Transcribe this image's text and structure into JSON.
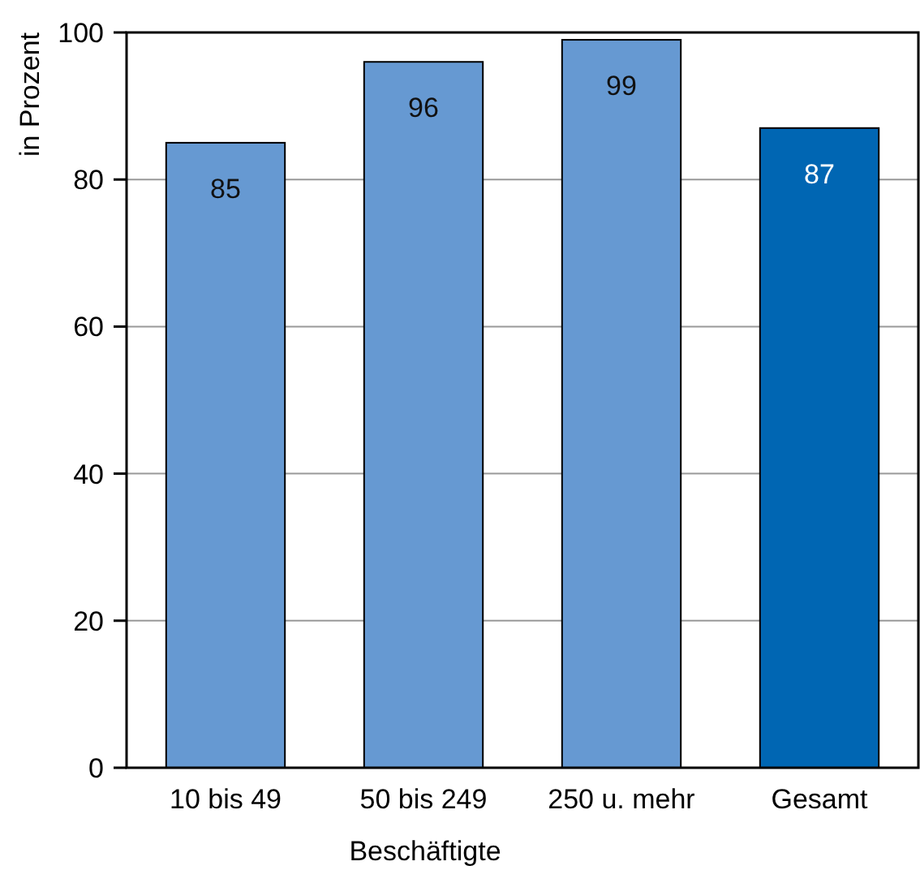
{
  "chart_data": {
    "type": "bar",
    "categories": [
      "10 bis 49",
      "50 bis 249",
      "250 u. mehr",
      "Gesamt"
    ],
    "values": [
      85,
      96,
      99,
      87
    ],
    "colors": [
      "#6699d2",
      "#6699d2",
      "#6699d2",
      "#0066b3"
    ],
    "ylim": [
      0,
      100
    ],
    "yticks": [
      0,
      20,
      40,
      60,
      80,
      100
    ],
    "grid": "y",
    "data_labels": true,
    "xlabel": "Beschäftigte",
    "ylabel": "in Prozent"
  }
}
